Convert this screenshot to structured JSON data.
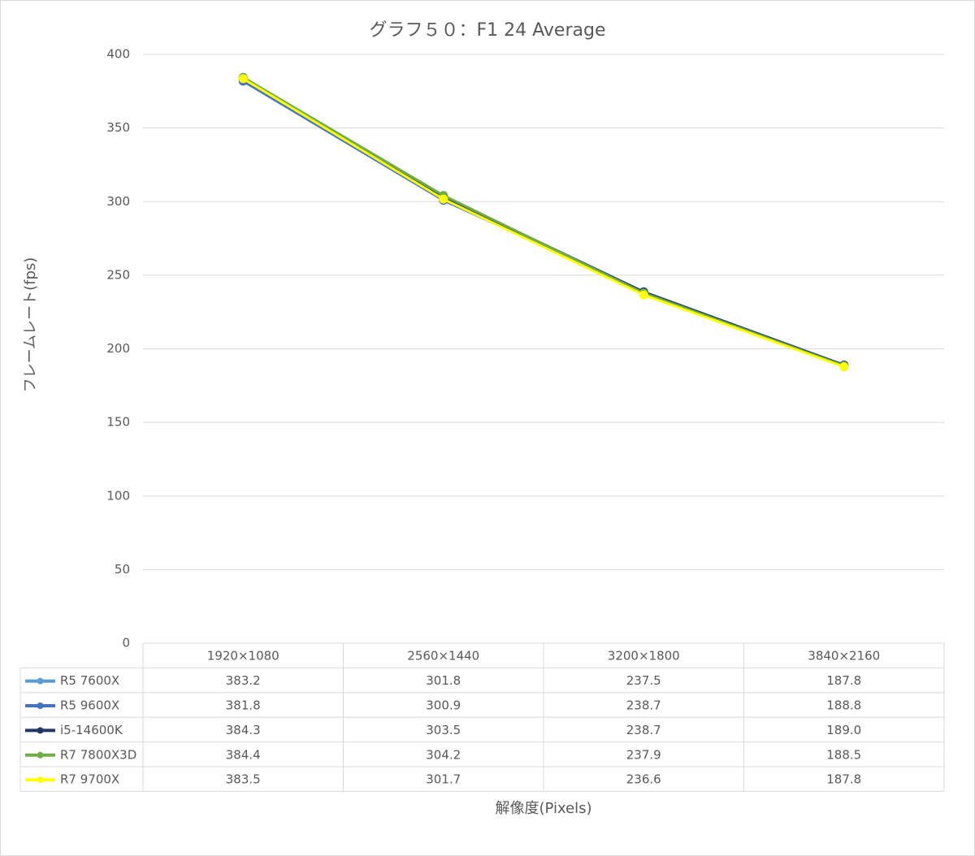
{
  "chart_data": {
    "type": "line",
    "title": "グラフ５０：F1 24 Average",
    "y_label": "フレームレート(fps)",
    "x_label": "解像度(Pixels)",
    "categories": [
      "1920×1080",
      "2560×1440",
      "3200×1800",
      "3840×2160"
    ],
    "series": [
      {
        "name": "R5 7600X",
        "color": "#5b9bd5",
        "values": [
          383.2,
          301.8,
          237.5,
          187.8
        ]
      },
      {
        "name": "R5 9600X",
        "color": "#4472c4",
        "values": [
          381.8,
          300.9,
          238.7,
          188.8
        ]
      },
      {
        "name": "i5-14600K",
        "color": "#1f3864",
        "values": [
          384.3,
          303.5,
          238.7,
          189.0
        ],
        "value_labels": [
          "384.3",
          "303.5",
          "238.7",
          "189.0"
        ]
      },
      {
        "name": "R7 7800X3D",
        "color": "#70ad47",
        "values": [
          384.4,
          304.2,
          237.9,
          188.5
        ]
      },
      {
        "name": "R7 9700X",
        "color": "#ffff00",
        "values": [
          383.5,
          301.7,
          236.6,
          187.8
        ]
      }
    ],
    "ylim": [
      0,
      400
    ],
    "yticks": [
      0,
      50,
      100,
      150,
      200,
      250,
      300,
      350,
      400
    ],
    "grid": true,
    "data_table": true
  }
}
